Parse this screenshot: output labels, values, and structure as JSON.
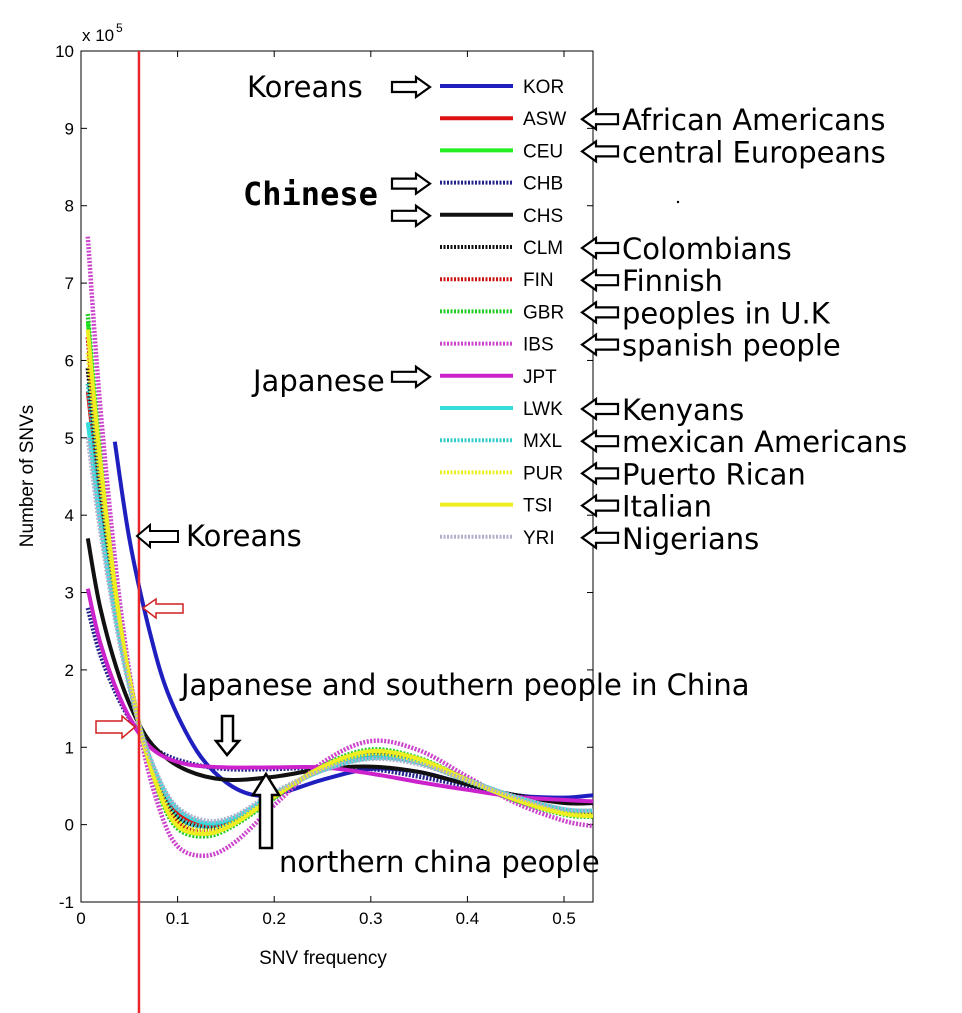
{
  "chart_data": {
    "type": "line",
    "xlabel": "SNV frequency",
    "ylabel": "Number of SNVs",
    "y_exponent": "x 10",
    "y_exponent_power": "5",
    "xlim": [
      0,
      0.53
    ],
    "ylim": [
      -1,
      10
    ],
    "x_ticks": [
      "0",
      "0.1",
      "0.2",
      "0.3",
      "0.4",
      "0.5"
    ],
    "y_ticks": [
      "-1",
      "0",
      "1",
      "2",
      "3",
      "4",
      "5",
      "6",
      "7",
      "8",
      "9",
      "10"
    ],
    "grid": false,
    "legend_position": "top-right",
    "vertical_line_x": 0.06,
    "vertical_line_color": "#e8262b",
    "series": [
      {
        "name": "KOR",
        "color": "#1f1fbf",
        "style": "solid",
        "points": [
          [
            0.035,
            4.95
          ],
          [
            0.05,
            3.7
          ],
          [
            0.07,
            2.55
          ],
          [
            0.09,
            1.7
          ],
          [
            0.12,
            0.95
          ],
          [
            0.15,
            0.55
          ],
          [
            0.18,
            0.38
          ],
          [
            0.21,
            0.42
          ],
          [
            0.25,
            0.58
          ],
          [
            0.3,
            0.72
          ],
          [
            0.35,
            0.68
          ],
          [
            0.4,
            0.52
          ],
          [
            0.45,
            0.38
          ],
          [
            0.5,
            0.35
          ],
          [
            0.53,
            0.38
          ]
        ]
      },
      {
        "name": "ASW",
        "color": "#dd1111",
        "style": "solid",
        "points": [
          [
            0.007,
            5.6
          ],
          [
            0.02,
            4.2
          ],
          [
            0.04,
            2.5
          ],
          [
            0.06,
            1.3
          ],
          [
            0.08,
            0.55
          ],
          [
            0.1,
            0.15
          ],
          [
            0.13,
            -0.02
          ],
          [
            0.16,
            0.08
          ],
          [
            0.2,
            0.38
          ],
          [
            0.25,
            0.72
          ],
          [
            0.3,
            0.9
          ],
          [
            0.35,
            0.82
          ],
          [
            0.4,
            0.58
          ],
          [
            0.45,
            0.35
          ],
          [
            0.5,
            0.18
          ],
          [
            0.53,
            0.15
          ]
        ]
      },
      {
        "name": "CEU",
        "color": "#22ee22",
        "style": "solid",
        "points": [
          [
            0.007,
            6.5
          ],
          [
            0.02,
            4.7
          ],
          [
            0.04,
            2.65
          ],
          [
            0.06,
            1.3
          ],
          [
            0.08,
            0.45
          ],
          [
            0.1,
            -0.02
          ],
          [
            0.13,
            -0.12
          ],
          [
            0.16,
            0.02
          ],
          [
            0.2,
            0.35
          ],
          [
            0.25,
            0.75
          ],
          [
            0.3,
            0.95
          ],
          [
            0.35,
            0.85
          ],
          [
            0.4,
            0.58
          ],
          [
            0.45,
            0.32
          ],
          [
            0.5,
            0.15
          ],
          [
            0.53,
            0.12
          ]
        ]
      },
      {
        "name": "CHB",
        "color": "#22228f",
        "style": "dotted",
        "points": [
          [
            0.007,
            2.8
          ],
          [
            0.02,
            2.2
          ],
          [
            0.04,
            1.6
          ],
          [
            0.06,
            1.2
          ],
          [
            0.08,
            0.95
          ],
          [
            0.11,
            0.8
          ],
          [
            0.15,
            0.72
          ],
          [
            0.2,
            0.72
          ],
          [
            0.25,
            0.74
          ],
          [
            0.3,
            0.72
          ],
          [
            0.35,
            0.62
          ],
          [
            0.4,
            0.5
          ],
          [
            0.45,
            0.38
          ],
          [
            0.5,
            0.3
          ],
          [
            0.53,
            0.28
          ]
        ]
      },
      {
        "name": "CHS",
        "color": "#111111",
        "style": "solid",
        "points": [
          [
            0.007,
            3.7
          ],
          [
            0.02,
            2.8
          ],
          [
            0.04,
            1.9
          ],
          [
            0.06,
            1.3
          ],
          [
            0.08,
            0.95
          ],
          [
            0.11,
            0.7
          ],
          [
            0.15,
            0.58
          ],
          [
            0.2,
            0.62
          ],
          [
            0.25,
            0.72
          ],
          [
            0.3,
            0.75
          ],
          [
            0.35,
            0.68
          ],
          [
            0.4,
            0.52
          ],
          [
            0.45,
            0.38
          ],
          [
            0.5,
            0.28
          ],
          [
            0.53,
            0.28
          ]
        ]
      },
      {
        "name": "CLM",
        "color": "#111111",
        "style": "dotted",
        "points": [
          [
            0.007,
            5.9
          ],
          [
            0.02,
            4.4
          ],
          [
            0.04,
            2.55
          ],
          [
            0.06,
            1.3
          ],
          [
            0.08,
            0.5
          ],
          [
            0.1,
            0.08
          ],
          [
            0.13,
            -0.05
          ],
          [
            0.16,
            0.05
          ],
          [
            0.2,
            0.38
          ],
          [
            0.25,
            0.72
          ],
          [
            0.3,
            0.9
          ],
          [
            0.35,
            0.8
          ],
          [
            0.4,
            0.56
          ],
          [
            0.45,
            0.33
          ],
          [
            0.5,
            0.16
          ],
          [
            0.53,
            0.14
          ]
        ]
      },
      {
        "name": "FIN",
        "color": "#cc1111",
        "style": "dotted",
        "points": [
          [
            0.007,
            6.3
          ],
          [
            0.02,
            4.6
          ],
          [
            0.04,
            2.6
          ],
          [
            0.06,
            1.3
          ],
          [
            0.08,
            0.48
          ],
          [
            0.1,
            0.02
          ],
          [
            0.13,
            -0.1
          ],
          [
            0.16,
            0.03
          ],
          [
            0.2,
            0.36
          ],
          [
            0.25,
            0.74
          ],
          [
            0.3,
            0.93
          ],
          [
            0.35,
            0.83
          ],
          [
            0.4,
            0.58
          ],
          [
            0.45,
            0.33
          ],
          [
            0.5,
            0.15
          ],
          [
            0.53,
            0.12
          ]
        ]
      },
      {
        "name": "GBR",
        "color": "#22cc22",
        "style": "dotted",
        "points": [
          [
            0.007,
            6.6
          ],
          [
            0.02,
            4.8
          ],
          [
            0.04,
            2.7
          ],
          [
            0.06,
            1.3
          ],
          [
            0.08,
            0.42
          ],
          [
            0.1,
            -0.05
          ],
          [
            0.13,
            -0.15
          ],
          [
            0.16,
            0.0
          ],
          [
            0.2,
            0.34
          ],
          [
            0.25,
            0.76
          ],
          [
            0.3,
            0.97
          ],
          [
            0.35,
            0.86
          ],
          [
            0.4,
            0.58
          ],
          [
            0.45,
            0.31
          ],
          [
            0.5,
            0.13
          ],
          [
            0.53,
            0.1
          ]
        ]
      },
      {
        "name": "IBS",
        "color": "#cc44cc",
        "style": "dotted",
        "points": [
          [
            0.007,
            7.6
          ],
          [
            0.02,
            5.4
          ],
          [
            0.04,
            2.9
          ],
          [
            0.06,
            1.25
          ],
          [
            0.08,
            0.25
          ],
          [
            0.1,
            -0.28
          ],
          [
            0.13,
            -0.4
          ],
          [
            0.16,
            -0.22
          ],
          [
            0.2,
            0.25
          ],
          [
            0.25,
            0.8
          ],
          [
            0.3,
            1.08
          ],
          [
            0.35,
            0.96
          ],
          [
            0.4,
            0.62
          ],
          [
            0.45,
            0.28
          ],
          [
            0.5,
            0.05
          ],
          [
            0.53,
            -0.02
          ]
        ]
      },
      {
        "name": "JPT",
        "color": "#cc22cc",
        "style": "solid",
        "points": [
          [
            0.007,
            3.05
          ],
          [
            0.02,
            2.35
          ],
          [
            0.04,
            1.65
          ],
          [
            0.06,
            1.18
          ],
          [
            0.08,
            0.92
          ],
          [
            0.11,
            0.78
          ],
          [
            0.15,
            0.74
          ],
          [
            0.2,
            0.74
          ],
          [
            0.25,
            0.74
          ],
          [
            0.3,
            0.66
          ],
          [
            0.35,
            0.55
          ],
          [
            0.4,
            0.45
          ],
          [
            0.45,
            0.36
          ],
          [
            0.5,
            0.32
          ],
          [
            0.53,
            0.3
          ]
        ]
      },
      {
        "name": "LWK",
        "color": "#33dddd",
        "style": "solid",
        "points": [
          [
            0.007,
            5.2
          ],
          [
            0.02,
            3.9
          ],
          [
            0.04,
            2.4
          ],
          [
            0.06,
            1.3
          ],
          [
            0.08,
            0.6
          ],
          [
            0.1,
            0.2
          ],
          [
            0.13,
            0.02
          ],
          [
            0.16,
            0.1
          ],
          [
            0.2,
            0.4
          ],
          [
            0.25,
            0.7
          ],
          [
            0.3,
            0.86
          ],
          [
            0.35,
            0.8
          ],
          [
            0.4,
            0.58
          ],
          [
            0.45,
            0.36
          ],
          [
            0.5,
            0.2
          ],
          [
            0.53,
            0.18
          ]
        ]
      },
      {
        "name": "MXL",
        "color": "#33cccc",
        "style": "dotted",
        "points": [
          [
            0.007,
            5.7
          ],
          [
            0.02,
            4.3
          ],
          [
            0.04,
            2.5
          ],
          [
            0.06,
            1.3
          ],
          [
            0.08,
            0.52
          ],
          [
            0.1,
            0.1
          ],
          [
            0.13,
            -0.03
          ],
          [
            0.16,
            0.06
          ],
          [
            0.2,
            0.38
          ],
          [
            0.25,
            0.72
          ],
          [
            0.3,
            0.89
          ],
          [
            0.35,
            0.8
          ],
          [
            0.4,
            0.56
          ],
          [
            0.45,
            0.33
          ],
          [
            0.5,
            0.17
          ],
          [
            0.53,
            0.14
          ]
        ]
      },
      {
        "name": "PUR",
        "color": "#eeee22",
        "style": "dotted",
        "points": [
          [
            0.007,
            6.1
          ],
          [
            0.02,
            4.5
          ],
          [
            0.04,
            2.6
          ],
          [
            0.06,
            1.3
          ],
          [
            0.08,
            0.48
          ],
          [
            0.1,
            0.04
          ],
          [
            0.13,
            -0.08
          ],
          [
            0.16,
            0.04
          ],
          [
            0.2,
            0.37
          ],
          [
            0.25,
            0.73
          ],
          [
            0.3,
            0.92
          ],
          [
            0.35,
            0.82
          ],
          [
            0.4,
            0.57
          ],
          [
            0.45,
            0.33
          ],
          [
            0.5,
            0.15
          ],
          [
            0.53,
            0.13
          ]
        ]
      },
      {
        "name": "TSI",
        "color": "#eeee22",
        "style": "solid",
        "points": [
          [
            0.007,
            6.4
          ],
          [
            0.02,
            4.7
          ],
          [
            0.04,
            2.65
          ],
          [
            0.06,
            1.3
          ],
          [
            0.08,
            0.45
          ],
          [
            0.1,
            -0.02
          ],
          [
            0.13,
            -0.12
          ],
          [
            0.16,
            0.02
          ],
          [
            0.2,
            0.36
          ],
          [
            0.25,
            0.75
          ],
          [
            0.3,
            0.95
          ],
          [
            0.35,
            0.85
          ],
          [
            0.4,
            0.58
          ],
          [
            0.45,
            0.32
          ],
          [
            0.5,
            0.14
          ],
          [
            0.53,
            0.11
          ]
        ]
      },
      {
        "name": "YRI",
        "color": "#b0b0cc",
        "style": "dotted",
        "points": [
          [
            0.007,
            5.0
          ],
          [
            0.02,
            3.8
          ],
          [
            0.04,
            2.35
          ],
          [
            0.06,
            1.3
          ],
          [
            0.08,
            0.62
          ],
          [
            0.1,
            0.22
          ],
          [
            0.13,
            0.05
          ],
          [
            0.16,
            0.12
          ],
          [
            0.2,
            0.42
          ],
          [
            0.25,
            0.7
          ],
          [
            0.3,
            0.85
          ],
          [
            0.35,
            0.78
          ],
          [
            0.4,
            0.57
          ],
          [
            0.45,
            0.36
          ],
          [
            0.5,
            0.2
          ],
          [
            0.53,
            0.18
          ]
        ]
      }
    ],
    "annotations": {
      "legend_labels": [
        {
          "code": "KOR",
          "label": "Koreans",
          "side": "left"
        },
        {
          "code": "ASW",
          "label": "African Americans",
          "side": "right"
        },
        {
          "code": "CEU",
          "label": "central Europeans",
          "side": "right"
        },
        {
          "code": "CHB",
          "label": "Chinese",
          "side": "left"
        },
        {
          "code": "CHS",
          "label": "",
          "side": "left"
        },
        {
          "code": "CLM",
          "label": "Colombians",
          "side": "right"
        },
        {
          "code": "FIN",
          "label": "Finnish",
          "side": "right"
        },
        {
          "code": "GBR",
          "label": "peoples in U.K",
          "side": "right"
        },
        {
          "code": "IBS",
          "label": "spanish people",
          "side": "right"
        },
        {
          "code": "JPT",
          "label": "Japanese",
          "side": "left"
        },
        {
          "code": "LWK",
          "label": "Kenyans",
          "side": "right"
        },
        {
          "code": "MXL",
          "label": "mexican Americans",
          "side": "right"
        },
        {
          "code": "PUR",
          "label": "Puerto Rican",
          "side": "right"
        },
        {
          "code": "TSI",
          "label": "Italian",
          "side": "right"
        },
        {
          "code": "YRI",
          "label": "Nigerians",
          "side": "right"
        }
      ],
      "koreans_curve_label": "Koreans",
      "japanese_southern_label": "Japanese and southern people in China",
      "northern_label": "northern china people"
    }
  }
}
